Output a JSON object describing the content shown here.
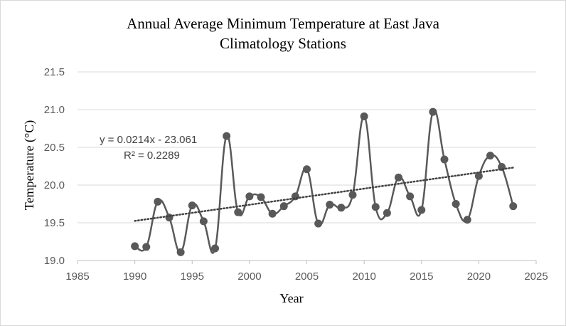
{
  "chart_data": {
    "type": "scatter",
    "title_lines": [
      "Annual Average Minimum Temperature at East Java",
      "Climatology Stations"
    ],
    "xlabel": "Year",
    "ylabel": "Temperature (°C)",
    "xlim": [
      1985,
      2025
    ],
    "ylim": [
      19.0,
      21.5
    ],
    "x_ticks": [
      "1985",
      "1990",
      "1995",
      "2000",
      "2005",
      "2010",
      "2015",
      "2020",
      "2025"
    ],
    "y_ticks": [
      "19.0",
      "19.5",
      "20.0",
      "20.5",
      "21.0",
      "21.5"
    ],
    "x_tick_values": [
      1985,
      1990,
      1995,
      2000,
      2005,
      2010,
      2015,
      2020,
      2025
    ],
    "y_tick_values": [
      19.0,
      19.5,
      20.0,
      20.5,
      21.0,
      21.5
    ],
    "grid": "horizontal",
    "line_style": "smoothed",
    "series": [
      {
        "color": "#595959",
        "x": [
          1990,
          1991,
          1992,
          1993,
          1994,
          1995,
          1996,
          1997,
          1998,
          1999,
          2000,
          2001,
          2002,
          2003,
          2004,
          2005,
          2006,
          2007,
          2008,
          2009,
          2010,
          2011,
          2012,
          2013,
          2014,
          2015,
          2016,
          2017,
          2018,
          2019,
          2020,
          2021,
          2022,
          2023
        ],
        "y": [
          19.19,
          19.18,
          19.78,
          19.57,
          19.11,
          19.73,
          19.52,
          19.16,
          20.65,
          19.64,
          19.85,
          19.84,
          19.62,
          19.72,
          19.85,
          20.21,
          19.49,
          19.74,
          19.7,
          19.87,
          20.91,
          19.71,
          19.63,
          20.1,
          19.85,
          19.67,
          20.97,
          20.34,
          19.75,
          19.54,
          20.12,
          20.39,
          20.24,
          19.72
        ]
      }
    ],
    "trendline": {
      "type": "linear",
      "slope": 0.0214,
      "intercept": -23.061,
      "x_range": [
        1990,
        2023
      ],
      "equation_text": "y = 0.0214x - 23.061",
      "r2_text": "R² = 0.2289",
      "color": "#404040"
    }
  }
}
